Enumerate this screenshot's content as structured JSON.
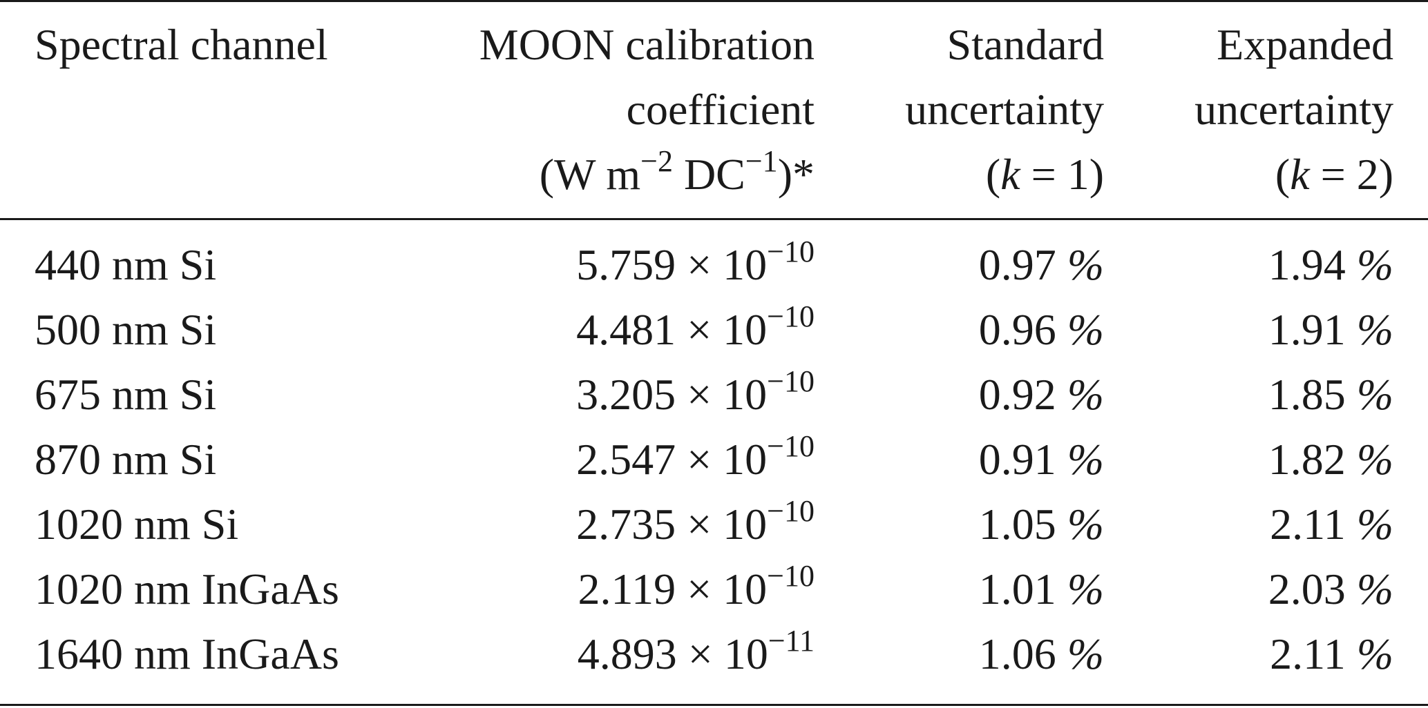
{
  "table": {
    "headers": {
      "col1": [
        "Spectral channel"
      ],
      "col2": [
        "MOON calibration",
        "coefficient",
        "(W m",
        "−2",
        " DC",
        "−1",
        ")*"
      ],
      "col3": [
        "Standard",
        "uncertainty",
        "(",
        "k",
        " = 1)"
      ],
      "col4": [
        "Expanded",
        "uncertainty",
        "(",
        "k",
        " = 2)"
      ]
    },
    "rows": [
      {
        "channel": "440 nm Si",
        "mantissa": "5.759 × 10",
        "exponent": "−10",
        "std": "0.97",
        "exp": "1.94",
        "unit": "%"
      },
      {
        "channel": "500 nm Si",
        "mantissa": "4.481 × 10",
        "exponent": "−10",
        "std": "0.96",
        "exp": "1.91",
        "unit": "%"
      },
      {
        "channel": "675 nm Si",
        "mantissa": "3.205 × 10",
        "exponent": "−10",
        "std": "0.92",
        "exp": "1.85",
        "unit": "%"
      },
      {
        "channel": "870 nm Si",
        "mantissa": "2.547 × 10",
        "exponent": "−10",
        "std": "0.91",
        "exp": "1.82",
        "unit": "%"
      },
      {
        "channel": "1020 nm Si",
        "mantissa": "2.735 × 10",
        "exponent": "−10",
        "std": "1.05",
        "exp": "2.11",
        "unit": "%"
      },
      {
        "channel": "1020 nm InGaAs",
        "mantissa": "2.119 × 10",
        "exponent": "−10",
        "std": "1.01",
        "exp": "2.03",
        "unit": "%"
      },
      {
        "channel": "1640 nm InGaAs",
        "mantissa": "4.893 × 10",
        "exponent": "−11",
        "std": "1.06",
        "exp": "2.11",
        "unit": "%"
      }
    ]
  }
}
